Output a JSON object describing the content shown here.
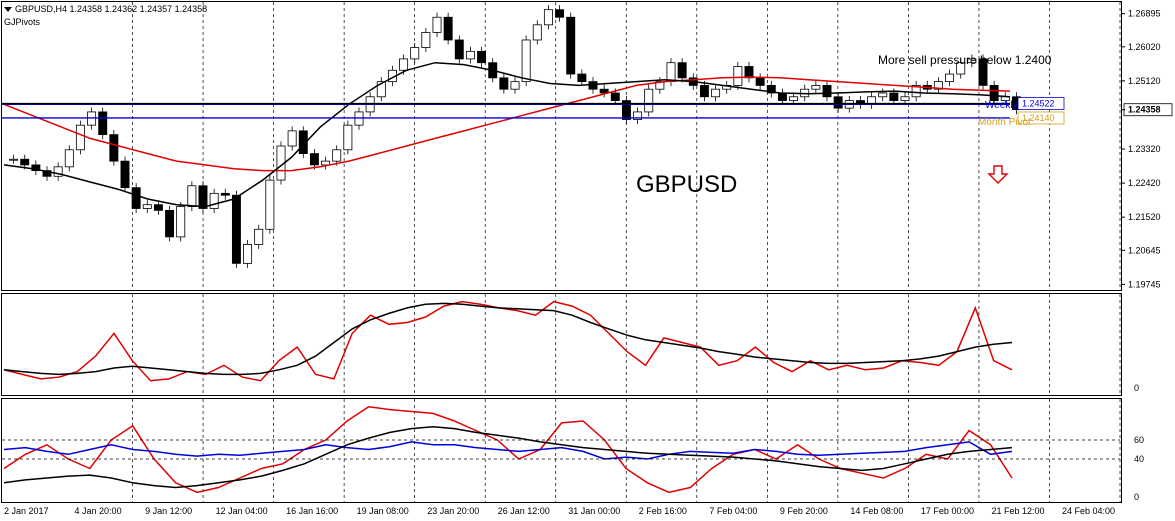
{
  "header": {
    "symbol_line": "GBPUSD,H4  1.24358 1.24362 1.24357 1.24358",
    "indicator": "GJPivots"
  },
  "annotations": {
    "watermark": "GBPUSD",
    "comment": "More sell pressure below 1.2400",
    "pivot_labels": [
      "Weekly Pivot",
      "1.24522",
      "1.24140",
      "Month Pivot"
    ],
    "arrow": "sell-arrow-icon"
  },
  "colors": {
    "candles": "#000000",
    "ma_red": "#e00000",
    "ma_black": "#000000",
    "pivot_blue": "#0000dd",
    "rsi_blue": "#0000dd",
    "price_tag_bg": "#ffffff"
  },
  "chart_data": [
    {
      "type": "candlestick",
      "panel": "price",
      "y_ticks": [
        "1.26895",
        "1.26020",
        "1.25120",
        "1.24358",
        "1.23320",
        "1.22420",
        "1.21520",
        "1.20645",
        "1.19745"
      ],
      "ylim": [
        1.1965,
        1.2715
      ],
      "current_price": "1.24358",
      "x_ticks": [
        "2 Jan 2017",
        "4 Jan 20:00",
        "9 Jan 12:00",
        "12 Jan 04:00",
        "16 Jan 16:00",
        "19 Jan 08:00",
        "23 Jan 20:00",
        "26 Jan 12:00",
        "31 Jan 00:00",
        "2 Feb 16:00",
        "7 Feb 04:00",
        "9 Feb 20:00",
        "14 Feb 08:00",
        "17 Feb 00:00",
        "21 Feb 12:00",
        "24 Feb 04:00"
      ],
      "closes": [
        1.2305,
        1.229,
        1.2275,
        1.226,
        1.2285,
        1.233,
        1.2395,
        1.243,
        1.237,
        1.23,
        1.223,
        1.2175,
        1.2185,
        1.217,
        1.21,
        1.218,
        1.2235,
        1.2175,
        1.2215,
        1.221,
        1.203,
        1.208,
        1.212,
        1.225,
        1.234,
        1.238,
        1.232,
        1.229,
        1.23,
        1.233,
        1.2395,
        1.243,
        1.247,
        1.251,
        1.254,
        1.257,
        1.26,
        1.264,
        1.268,
        1.262,
        1.257,
        1.259,
        1.256,
        1.252,
        1.249,
        1.251,
        1.262,
        1.266,
        1.27,
        1.268,
        1.253,
        1.251,
        1.249,
        1.248,
        1.246,
        1.241,
        1.243,
        1.249,
        1.251,
        1.256,
        1.252,
        1.25,
        1.247,
        1.249,
        1.25,
        1.255,
        1.252,
        1.25,
        1.248,
        1.246,
        1.247,
        1.249,
        1.25,
        1.247,
        1.244,
        1.246,
        1.245,
        1.247,
        1.248,
        1.246,
        1.247,
        1.25,
        1.249,
        1.251,
        1.253,
        1.256,
        1.257,
        1.25,
        1.246,
        1.247,
        1.2436
      ],
      "series": [
        {
          "name": "",
          "color": "red",
          "values": [
            1.245,
            1.242,
            1.239,
            1.236,
            1.234,
            1.232,
            1.23,
            1.229,
            1.228,
            1.2275,
            1.2275,
            1.2285,
            1.23,
            1.232,
            1.234,
            1.236,
            1.238,
            1.24,
            1.242,
            1.244,
            1.246,
            1.248,
            1.25,
            1.251,
            1.2515,
            1.252,
            1.2522,
            1.252,
            1.2515,
            1.251,
            1.2505,
            1.25,
            1.2495,
            1.249,
            1.2487,
            1.2485
          ]
        },
        {
          "name": "",
          "color": "black",
          "values": [
            1.229,
            1.228,
            1.2265,
            1.2245,
            1.2225,
            1.22,
            1.2185,
            1.218,
            1.22,
            1.225,
            1.231,
            1.239,
            1.245,
            1.25,
            1.254,
            1.256,
            1.2555,
            1.254,
            1.252,
            1.2505,
            1.25,
            1.2505,
            1.251,
            1.2515,
            1.251,
            1.25,
            1.249,
            1.248,
            1.2478,
            1.248,
            1.2483,
            1.2485,
            1.248,
            1.2478,
            1.2475,
            1.247
          ]
        }
      ],
      "levels": [
        {
          "name": "horizontal-line",
          "value": 1.245,
          "color": "blue"
        },
        {
          "name": "weekly-pivot",
          "value": 1.24522,
          "color": "black"
        },
        {
          "name": "support",
          "value": 1.2414,
          "color": "blue"
        }
      ]
    },
    {
      "type": "line",
      "panel": "stochastic",
      "y_ticks": [
        "0"
      ],
      "ylim": [
        0,
        100
      ],
      "series": [
        {
          "name": "",
          "color": "red",
          "values": [
            20,
            15,
            10,
            12,
            18,
            35,
            60,
            30,
            8,
            10,
            18,
            15,
            25,
            12,
            8,
            30,
            45,
            15,
            10,
            60,
            80,
            70,
            72,
            78,
            90,
            95,
            92,
            88,
            85,
            80,
            95,
            90,
            80,
            60,
            40,
            25,
            55,
            50,
            45,
            25,
            30,
            45,
            28,
            18,
            30,
            20,
            25,
            20,
            22,
            30,
            28,
            25,
            40,
            88,
            30,
            20
          ]
        },
        {
          "name": "",
          "color": "black",
          "values": [
            20,
            18,
            16,
            15,
            16,
            18,
            22,
            24,
            22,
            20,
            18,
            16,
            15,
            15,
            16,
            20,
            25,
            35,
            50,
            65,
            75,
            82,
            88,
            92,
            93,
            92,
            90,
            88,
            87,
            86,
            85,
            80,
            72,
            65,
            58,
            53,
            50,
            47,
            44,
            40,
            37,
            34,
            32,
            30,
            28,
            27,
            27,
            28,
            29,
            30,
            32,
            35,
            40,
            45,
            48,
            50
          ]
        }
      ]
    },
    {
      "type": "line",
      "panel": "rsi",
      "y_ticks": [
        "60",
        "40",
        "0"
      ],
      "ylim": [
        0,
        100
      ],
      "series": [
        {
          "name": "",
          "color": "red",
          "values": [
            30,
            45,
            55,
            40,
            30,
            60,
            75,
            40,
            15,
            5,
            10,
            20,
            30,
            35,
            50,
            60,
            80,
            95,
            92,
            90,
            88,
            80,
            70,
            60,
            40,
            50,
            78,
            80,
            60,
            30,
            15,
            5,
            10,
            30,
            45,
            50,
            40,
            55,
            40,
            30,
            25,
            20,
            30,
            45,
            40,
            70,
            55,
            20
          ]
        },
        {
          "name": "",
          "color": "blue",
          "values": [
            50,
            52,
            48,
            45,
            50,
            55,
            50,
            48,
            45,
            43,
            45,
            44,
            46,
            48,
            50,
            55,
            52,
            50,
            53,
            58,
            55,
            55,
            52,
            50,
            48,
            50,
            52,
            48,
            40,
            42,
            40,
            45,
            48,
            47,
            46,
            50,
            48,
            45,
            44,
            45,
            46,
            47,
            48,
            52,
            55,
            58,
            45,
            48
          ]
        },
        {
          "name": "",
          "color": "black",
          "values": [
            15,
            18,
            20,
            22,
            23,
            20,
            15,
            12,
            10,
            12,
            15,
            18,
            22,
            28,
            35,
            45,
            55,
            62,
            68,
            72,
            74,
            72,
            68,
            65,
            62,
            58,
            55,
            52,
            50,
            48,
            46,
            45,
            44,
            43,
            42,
            40,
            38,
            35,
            32,
            30,
            28,
            30,
            35,
            40,
            45,
            48,
            50,
            52
          ]
        }
      ]
    }
  ]
}
